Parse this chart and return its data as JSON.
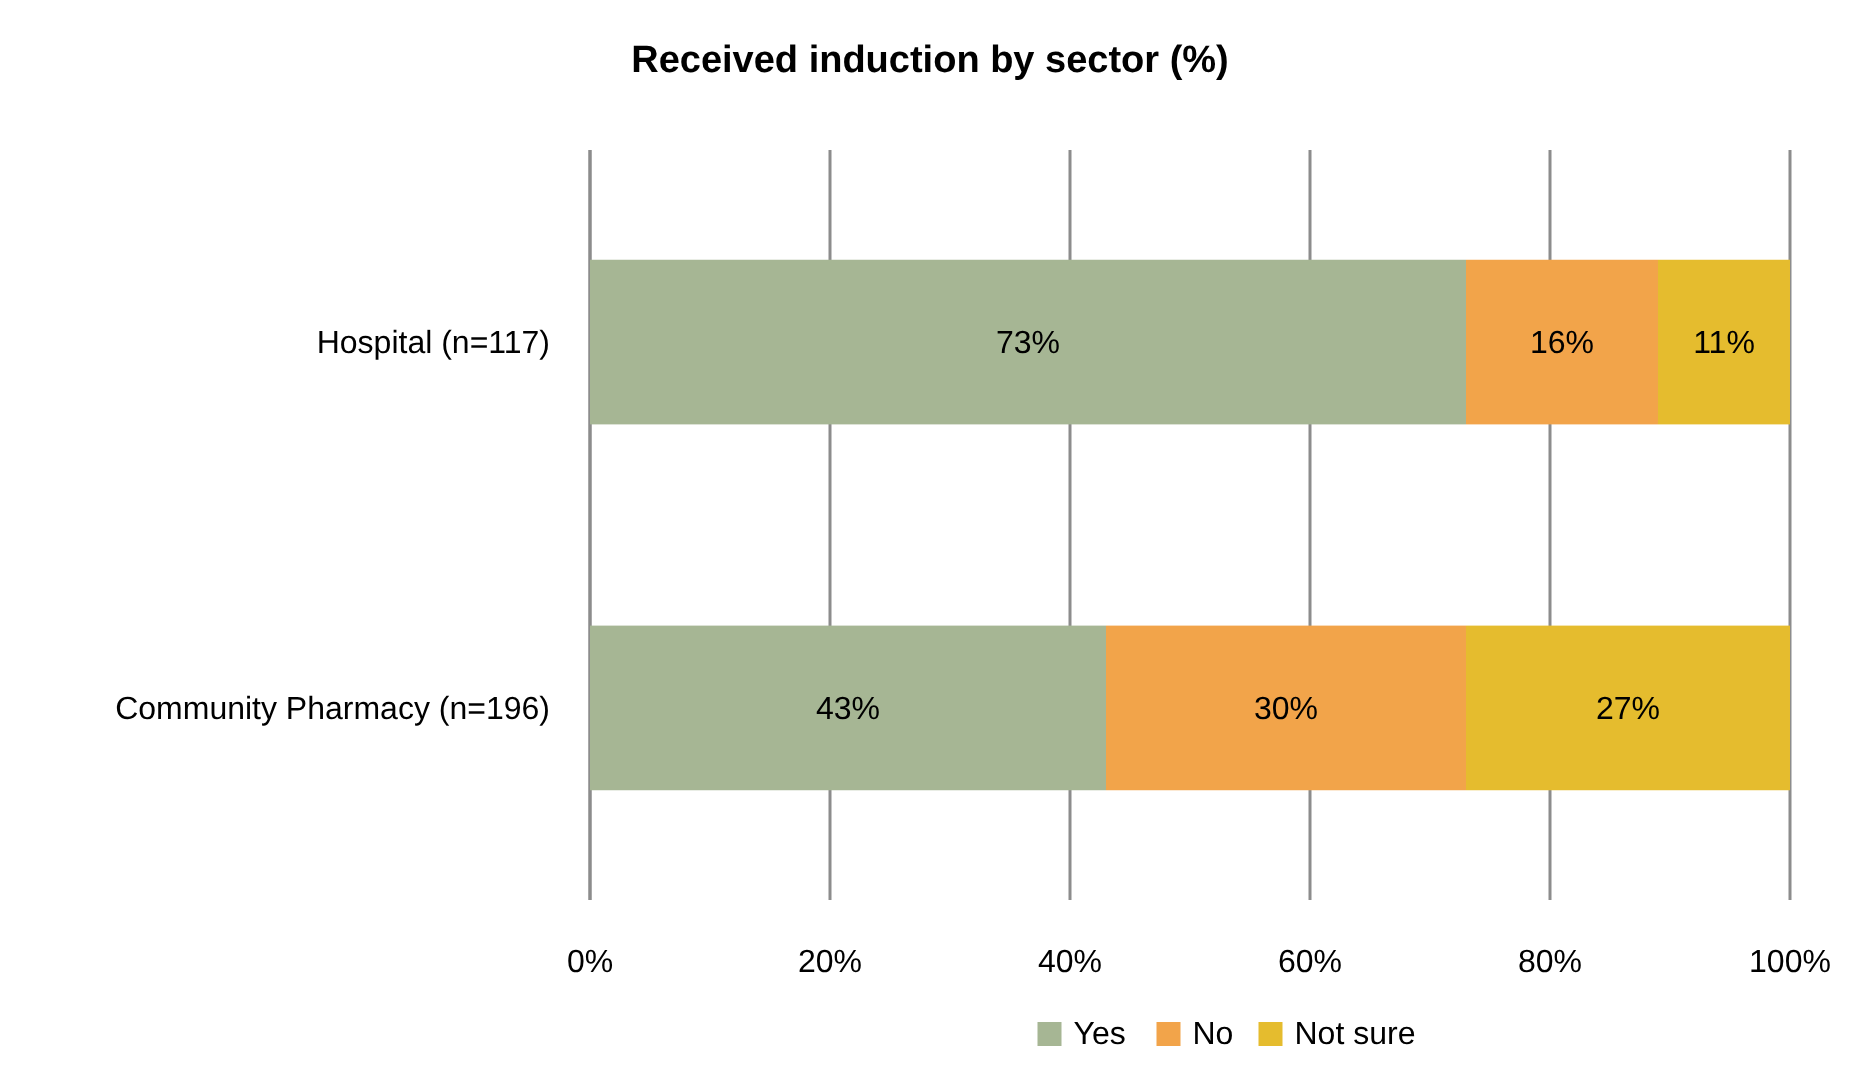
{
  "chart_data": {
    "type": "bar",
    "title": "Received induction by sector (%)",
    "orientation": "horizontal",
    "stacked": true,
    "categories": [
      "Hospital (n=117)",
      "Community Pharmacy (n=196)"
    ],
    "series": [
      {
        "name": "Yes",
        "color": "#a6b694",
        "values": [
          73,
          43
        ],
        "value_labels": [
          "73%",
          "43%"
        ]
      },
      {
        "name": "No",
        "color": "#f2a44a",
        "values": [
          16,
          30
        ],
        "value_labels": [
          "16%",
          "30%"
        ]
      },
      {
        "name": "Not sure",
        "color": "#e5bc2e",
        "values": [
          11,
          27
        ],
        "value_labels": [
          "11%",
          "27%"
        ]
      }
    ],
    "xlim": [
      0,
      100
    ],
    "xticks": [
      {
        "value": 0,
        "label": "0%"
      },
      {
        "value": 20,
        "label": "20%"
      },
      {
        "value": 40,
        "label": "40%"
      },
      {
        "value": 60,
        "label": "60%"
      },
      {
        "value": 80,
        "label": "80%"
      },
      {
        "value": 100,
        "label": "100%"
      }
    ],
    "grid": "x",
    "legend": "bottom"
  }
}
